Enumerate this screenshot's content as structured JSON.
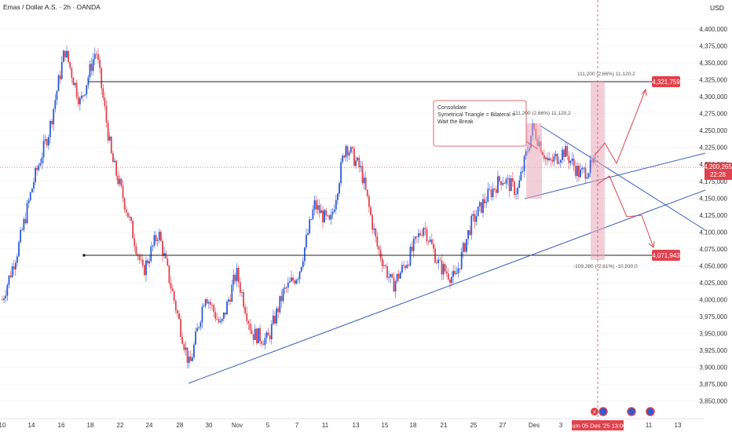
{
  "header": {
    "title": "Emas / Dollar A.S. · 2h · OANDA",
    "currency": "USD"
  },
  "colors": {
    "up": "#2c5bd6",
    "down": "#e0424d",
    "grid": "#f0f0f0",
    "trend": "#3b5fbf",
    "price_label": "#e0424d"
  },
  "chart_data": {
    "type": "candlestick",
    "title": "Emas / Dollar A.S. · 2h · OANDA",
    "ylabel": "USD",
    "ylim": [
      3850000,
      4410000
    ],
    "y_ticks": [
      "4,400,000",
      "4,375,000",
      "4,350,000",
      "4,325,000",
      "4,300,000",
      "4,275,000",
      "4,250,000",
      "4,225,000",
      "4,200,000",
      "4,175,000",
      "4,150,000",
      "4,125,000",
      "4,100,000",
      "4,075,000",
      "4,050,000",
      "4,025,000",
      "4,000,000",
      "3,975,000",
      "3,950,000",
      "3,925,000",
      "3,900,000",
      "3,875,000",
      "3,850,000"
    ],
    "x_ticks": [
      "10",
      "14",
      "16",
      "18",
      "22",
      "24",
      "28",
      "30",
      "Nov",
      "5",
      "7",
      "11",
      "13",
      "15",
      "18",
      "21",
      "25",
      "27",
      "Des",
      "3",
      "11",
      "13"
    ],
    "date_highlight": "Jum 05 Des '25   13:00",
    "price_path": [
      [
        4000000,
        "10"
      ],
      [
        4075000,
        "12"
      ],
      [
        4175000,
        "14"
      ],
      [
        4250000,
        "15"
      ],
      [
        4370000,
        "17"
      ],
      [
        4290000,
        "18"
      ],
      [
        4370000,
        "19"
      ],
      [
        4210000,
        "20"
      ],
      [
        4130000,
        "21"
      ],
      [
        4040000,
        "22"
      ],
      [
        4100000,
        "23"
      ],
      [
        4000000,
        "24"
      ],
      [
        3900000,
        "28"
      ],
      [
        4010000,
        "29"
      ],
      [
        3960000,
        "30"
      ],
      [
        4040000,
        "31"
      ],
      [
        3950000,
        "Nov 4"
      ],
      [
        3940000,
        "Nov 5"
      ],
      [
        4010000,
        "Nov 7"
      ],
      [
        4040000,
        "Nov 10"
      ],
      [
        4140000,
        "Nov 11"
      ],
      [
        4110000,
        "Nov 12"
      ],
      [
        4230000,
        "Nov 13"
      ],
      [
        4190000,
        "Nov 14"
      ],
      [
        4080000,
        "Nov 15"
      ],
      [
        4020000,
        "Nov 18"
      ],
      [
        4060000,
        "Nov 19"
      ],
      [
        4110000,
        "Nov 20"
      ],
      [
        4050000,
        "Nov 21"
      ],
      [
        4030000,
        "Nov 24"
      ],
      [
        4110000,
        "Nov 25"
      ],
      [
        4150000,
        "Nov 26"
      ],
      [
        4180000,
        "Nov 27"
      ],
      [
        4160000,
        "Nov 28"
      ],
      [
        4255000,
        "Des 1"
      ],
      [
        4200000,
        "Des 2"
      ],
      [
        4220000,
        "Des 3"
      ],
      [
        4185000,
        "Des 4"
      ],
      [
        4200000,
        "Des 5"
      ]
    ],
    "levels": [
      {
        "label": "4,321,759",
        "value": 4321759
      },
      {
        "label": "4,071,943",
        "value": 4071943
      }
    ],
    "current_price": {
      "label": "4,200,265",
      "countdown": "22:28",
      "value": 4200265
    },
    "annotations": {
      "consolidate": [
        "Consolidate",
        "Symetrical Triangle = Bilateral =",
        "Wait the Break"
      ],
      "measure_left": "111,200 (2,66%) 11,120,2",
      "measure_right": "111,200 (2,66%) 11,120,2",
      "measure_down": "-109,280 (-2,61%) -10,930,0"
    }
  }
}
